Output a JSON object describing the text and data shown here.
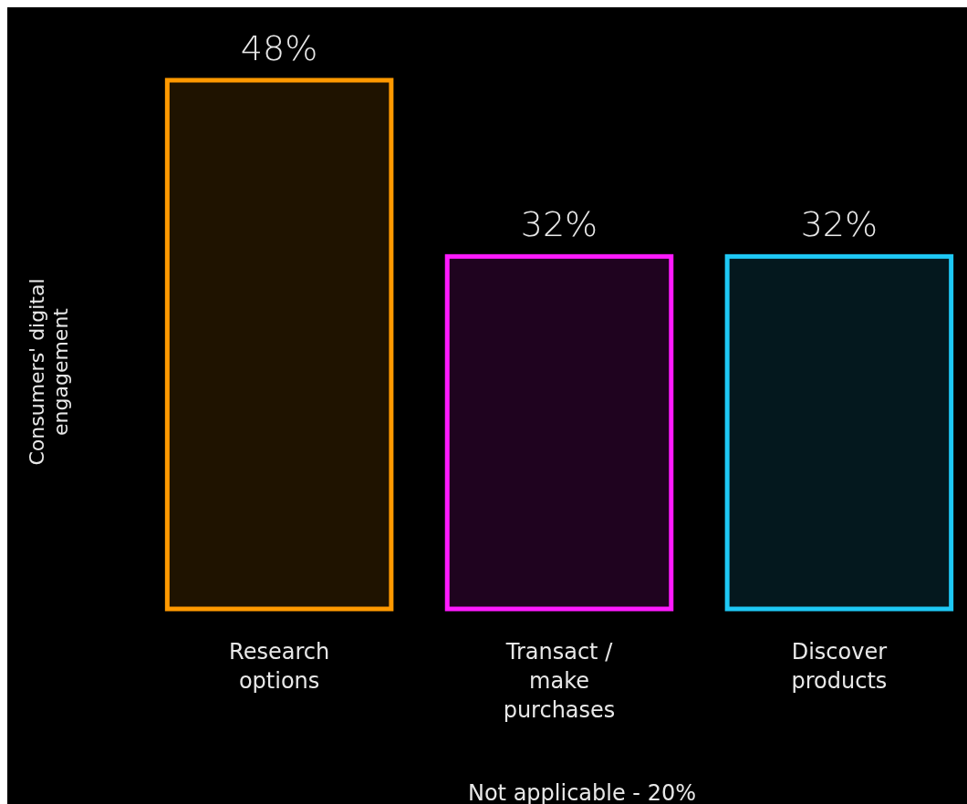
{
  "chart_data": {
    "type": "bar",
    "categories": [
      "Research options",
      "Transact / make purchases",
      "Discover products"
    ],
    "values": [
      48,
      32,
      32
    ],
    "colors": [
      "#ff9900",
      "#ff1aff",
      "#1ec8f5"
    ],
    "ylabel": "Consumers' digital engagement",
    "value_labels": [
      "48%",
      "32%",
      "32%"
    ],
    "annotations": [
      "Not applicable - 20%"
    ]
  }
}
